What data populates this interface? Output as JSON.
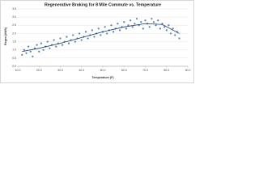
{
  "chart_data": {
    "type": "scatter",
    "title": "Regenerative Braking for 8 Mile Commute vs. Temperature",
    "x_label": "Temperature (F)",
    "y_label": "Regen (kWh)",
    "x": [
      12,
      13,
      14,
      15,
      16,
      17,
      18,
      19,
      20,
      21,
      22,
      23,
      24,
      25,
      26,
      27,
      28,
      29,
      30,
      31,
      32,
      33,
      34,
      35,
      36,
      37,
      38,
      39,
      40,
      41,
      42,
      43,
      44,
      45,
      46,
      47,
      48,
      49,
      50,
      51,
      52,
      53,
      54,
      55,
      56,
      57,
      58,
      59,
      60,
      61,
      62,
      63,
      64,
      65,
      66,
      67,
      68,
      69,
      70,
      71,
      72,
      73,
      74,
      75,
      76,
      77,
      78,
      79,
      80,
      81,
      82,
      83,
      84,
      85,
      86
    ],
    "values": [
      0.7,
      1.0,
      0.8,
      1.2,
      0.9,
      0.6,
      1.1,
      1.3,
      0.9,
      1.4,
      1.0,
      1.2,
      1.5,
      1.1,
      1.3,
      1.6,
      1.2,
      1.4,
      1.7,
      1.3,
      1.5,
      1.8,
      1.4,
      1.6,
      1.9,
      1.5,
      1.7,
      2.0,
      1.6,
      1.8,
      2.1,
      1.7,
      1.9,
      2.2,
      1.8,
      2.0,
      2.3,
      1.9,
      2.1,
      2.4,
      2.0,
      2.2,
      2.5,
      2.1,
      2.3,
      2.6,
      2.2,
      2.4,
      2.7,
      2.3,
      2.5,
      2.8,
      2.4,
      2.6,
      2.9,
      2.5,
      2.7,
      2.3,
      2.8,
      2.6,
      2.4,
      2.9,
      2.7,
      2.5,
      2.8,
      2.3,
      2.6,
      2.4,
      2.2,
      2.5,
      2.0,
      2.3,
      1.9,
      2.1,
      1.7
    ],
    "color": "#4f81bd",
    "trendline": {
      "x": [
        12,
        20,
        30,
        40,
        50,
        60,
        70,
        78,
        86
      ],
      "values": [
        0.9,
        1.1,
        1.4,
        1.75,
        2.1,
        2.4,
        2.6,
        2.55,
        2.0
      ],
      "color": "#1f3864"
    },
    "xlim": [
      10,
      90
    ],
    "xticks": [
      {
        "value": 10,
        "label": "10.0"
      },
      {
        "value": 20,
        "label": "20.0"
      },
      {
        "value": 30,
        "label": "30.0"
      },
      {
        "value": 40,
        "label": "40.0"
      },
      {
        "value": 50,
        "label": "50.0"
      },
      {
        "value": 60,
        "label": "60.0"
      },
      {
        "value": 70,
        "label": "70.0"
      },
      {
        "value": 80,
        "label": "80.0"
      },
      {
        "value": 90,
        "label": "90.0"
      }
    ],
    "ylim": [
      0,
      3.5
    ],
    "yticks": [
      {
        "value": 0,
        "label": "0.0"
      },
      {
        "value": 0.5,
        "label": "0.5"
      },
      {
        "value": 1,
        "label": "1.0"
      },
      {
        "value": 1.5,
        "label": "1.5"
      },
      {
        "value": 2,
        "label": "2.0"
      },
      {
        "value": 2.5,
        "label": "2.5"
      },
      {
        "value": 3,
        "label": "3.0"
      },
      {
        "value": 3.5,
        "label": "3.5"
      }
    ],
    "grid": true
  }
}
